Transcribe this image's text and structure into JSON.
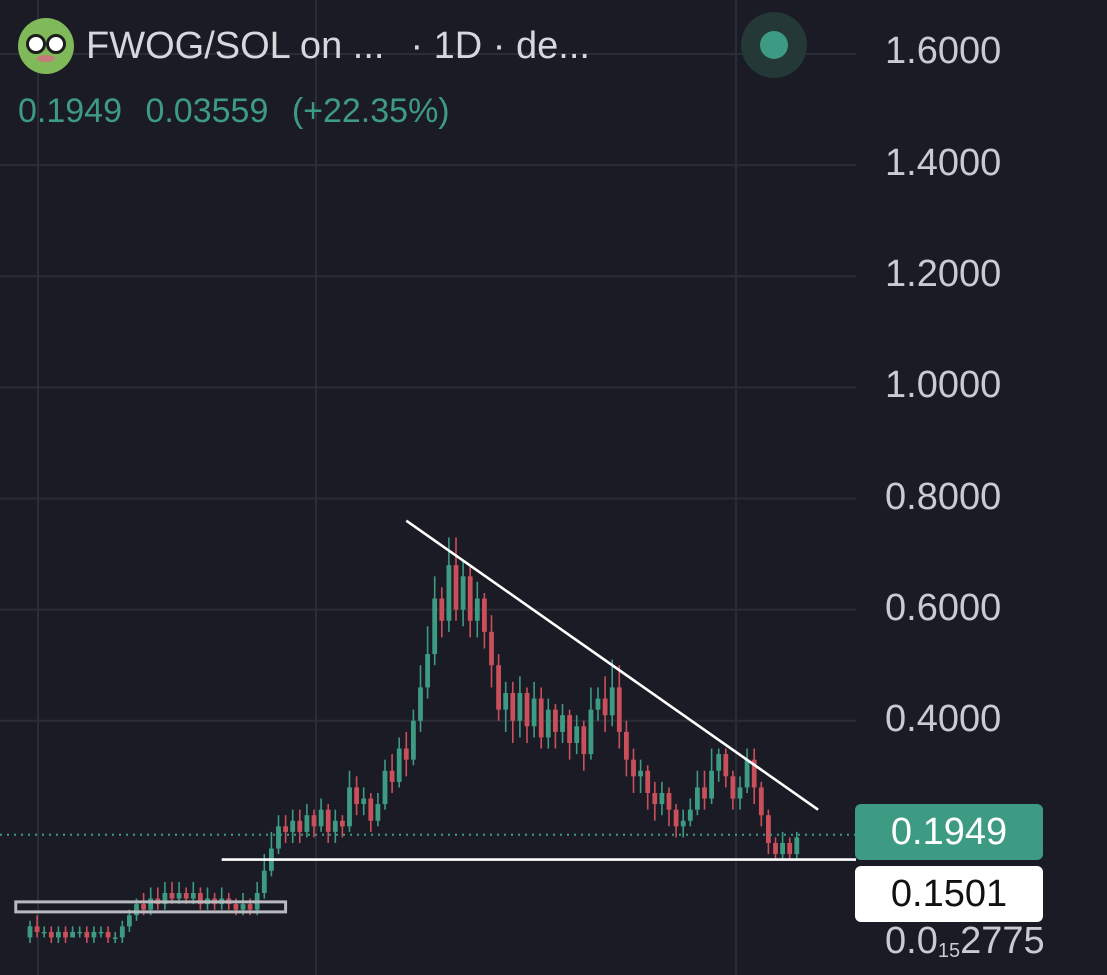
{
  "header": {
    "title": "FWOG/SOL on ...",
    "interval": "· 1D · de...",
    "last_price": "0.1949",
    "change": "0.03559",
    "change_pct": "(+22.35%)"
  },
  "colors": {
    "background": "#1a1b24",
    "up": "#3e9b83",
    "down": "#c9505b",
    "grid": "#2a2c36",
    "axis_text": "#c9cbd2",
    "drawing": "#ffffff"
  },
  "icons": [
    "frog-avatar-icon",
    "live-status-dot-icon"
  ],
  "price_tags": {
    "current": "0.1949",
    "level": "0.1501"
  },
  "bottom_label": {
    "prefix": "0.0",
    "subscript": "15",
    "suffix": "2775"
  },
  "chart_data": {
    "type": "candlestick",
    "interval": "1D",
    "y_ticks": [
      "1.6000",
      "1.4000",
      "1.2000",
      "1.0000",
      "0.8000",
      "0.6000",
      "0.4000"
    ],
    "ylim": [
      0.0,
      1.64
    ],
    "last_price": 0.1949,
    "support_level": 0.1501,
    "grid": true,
    "candles": [
      [
        0.01,
        0.03,
        0.0,
        0.04
      ],
      [
        0.03,
        0.02,
        0.01,
        0.05
      ],
      [
        0.02,
        0.02,
        0.01,
        0.03
      ],
      [
        0.02,
        0.01,
        0.0,
        0.03
      ],
      [
        0.01,
        0.02,
        0.0,
        0.03
      ],
      [
        0.02,
        0.01,
        0.0,
        0.03
      ],
      [
        0.01,
        0.02,
        0.01,
        0.03
      ],
      [
        0.02,
        0.02,
        0.01,
        0.03
      ],
      [
        0.02,
        0.01,
        0.0,
        0.03
      ],
      [
        0.01,
        0.02,
        0.0,
        0.03
      ],
      [
        0.02,
        0.02,
        0.01,
        0.03
      ],
      [
        0.02,
        0.01,
        0.0,
        0.03
      ],
      [
        0.01,
        0.01,
        0.0,
        0.02
      ],
      [
        0.01,
        0.03,
        0.0,
        0.04
      ],
      [
        0.03,
        0.05,
        0.02,
        0.06
      ],
      [
        0.05,
        0.07,
        0.04,
        0.08
      ],
      [
        0.07,
        0.06,
        0.05,
        0.09
      ],
      [
        0.06,
        0.08,
        0.05,
        0.1
      ],
      [
        0.08,
        0.07,
        0.06,
        0.1
      ],
      [
        0.07,
        0.09,
        0.06,
        0.11
      ],
      [
        0.09,
        0.08,
        0.07,
        0.11
      ],
      [
        0.08,
        0.09,
        0.07,
        0.11
      ],
      [
        0.09,
        0.08,
        0.07,
        0.1
      ],
      [
        0.08,
        0.09,
        0.07,
        0.11
      ],
      [
        0.09,
        0.07,
        0.06,
        0.1
      ],
      [
        0.07,
        0.08,
        0.06,
        0.1
      ],
      [
        0.08,
        0.07,
        0.06,
        0.09
      ],
      [
        0.07,
        0.08,
        0.06,
        0.1
      ],
      [
        0.08,
        0.07,
        0.06,
        0.09
      ],
      [
        0.07,
        0.06,
        0.05,
        0.08
      ],
      [
        0.06,
        0.07,
        0.05,
        0.09
      ],
      [
        0.07,
        0.06,
        0.05,
        0.08
      ],
      [
        0.06,
        0.09,
        0.05,
        0.11
      ],
      [
        0.09,
        0.13,
        0.08,
        0.16
      ],
      [
        0.13,
        0.17,
        0.12,
        0.2
      ],
      [
        0.17,
        0.21,
        0.16,
        0.23
      ],
      [
        0.21,
        0.2,
        0.18,
        0.23
      ],
      [
        0.2,
        0.22,
        0.18,
        0.24
      ],
      [
        0.22,
        0.2,
        0.18,
        0.24
      ],
      [
        0.2,
        0.23,
        0.19,
        0.25
      ],
      [
        0.23,
        0.21,
        0.19,
        0.24
      ],
      [
        0.21,
        0.24,
        0.2,
        0.26
      ],
      [
        0.24,
        0.2,
        0.18,
        0.25
      ],
      [
        0.2,
        0.22,
        0.18,
        0.24
      ],
      [
        0.22,
        0.21,
        0.19,
        0.23
      ],
      [
        0.21,
        0.28,
        0.2,
        0.31
      ],
      [
        0.28,
        0.25,
        0.23,
        0.3
      ],
      [
        0.25,
        0.26,
        0.23,
        0.28
      ],
      [
        0.26,
        0.22,
        0.2,
        0.27
      ],
      [
        0.22,
        0.25,
        0.21,
        0.27
      ],
      [
        0.25,
        0.31,
        0.24,
        0.33
      ],
      [
        0.31,
        0.29,
        0.27,
        0.34
      ],
      [
        0.29,
        0.35,
        0.28,
        0.37
      ],
      [
        0.35,
        0.33,
        0.3,
        0.38
      ],
      [
        0.33,
        0.4,
        0.32,
        0.42
      ],
      [
        0.4,
        0.46,
        0.38,
        0.5
      ],
      [
        0.46,
        0.52,
        0.44,
        0.57
      ],
      [
        0.52,
        0.62,
        0.5,
        0.66
      ],
      [
        0.62,
        0.58,
        0.55,
        0.64
      ],
      [
        0.58,
        0.68,
        0.56,
        0.73
      ],
      [
        0.68,
        0.6,
        0.58,
        0.73
      ],
      [
        0.6,
        0.66,
        0.57,
        0.69
      ],
      [
        0.66,
        0.58,
        0.55,
        0.68
      ],
      [
        0.58,
        0.62,
        0.55,
        0.65
      ],
      [
        0.62,
        0.56,
        0.53,
        0.63
      ],
      [
        0.56,
        0.5,
        0.46,
        0.59
      ],
      [
        0.5,
        0.42,
        0.4,
        0.52
      ],
      [
        0.42,
        0.45,
        0.38,
        0.47
      ],
      [
        0.45,
        0.4,
        0.36,
        0.47
      ],
      [
        0.4,
        0.45,
        0.37,
        0.48
      ],
      [
        0.45,
        0.39,
        0.36,
        0.46
      ],
      [
        0.39,
        0.44,
        0.37,
        0.47
      ],
      [
        0.44,
        0.37,
        0.35,
        0.46
      ],
      [
        0.37,
        0.42,
        0.35,
        0.44
      ],
      [
        0.42,
        0.38,
        0.35,
        0.43
      ],
      [
        0.38,
        0.41,
        0.36,
        0.43
      ],
      [
        0.41,
        0.36,
        0.33,
        0.42
      ],
      [
        0.36,
        0.39,
        0.34,
        0.41
      ],
      [
        0.39,
        0.34,
        0.31,
        0.4
      ],
      [
        0.34,
        0.42,
        0.33,
        0.46
      ],
      [
        0.42,
        0.44,
        0.4,
        0.46
      ],
      [
        0.44,
        0.41,
        0.38,
        0.48
      ],
      [
        0.41,
        0.46,
        0.39,
        0.51
      ],
      [
        0.46,
        0.38,
        0.35,
        0.5
      ],
      [
        0.38,
        0.33,
        0.3,
        0.4
      ],
      [
        0.33,
        0.3,
        0.27,
        0.35
      ],
      [
        0.3,
        0.31,
        0.27,
        0.33
      ],
      [
        0.31,
        0.27,
        0.24,
        0.32
      ],
      [
        0.27,
        0.25,
        0.22,
        0.29
      ],
      [
        0.25,
        0.27,
        0.23,
        0.29
      ],
      [
        0.27,
        0.24,
        0.21,
        0.28
      ],
      [
        0.24,
        0.21,
        0.19,
        0.25
      ],
      [
        0.21,
        0.22,
        0.19,
        0.24
      ],
      [
        0.22,
        0.24,
        0.21,
        0.26
      ],
      [
        0.24,
        0.28,
        0.23,
        0.31
      ],
      [
        0.28,
        0.26,
        0.24,
        0.31
      ],
      [
        0.26,
        0.31,
        0.25,
        0.35
      ],
      [
        0.31,
        0.34,
        0.29,
        0.35
      ],
      [
        0.34,
        0.3,
        0.28,
        0.35
      ],
      [
        0.3,
        0.26,
        0.24,
        0.31
      ],
      [
        0.26,
        0.28,
        0.24,
        0.3
      ],
      [
        0.28,
        0.33,
        0.27,
        0.35
      ],
      [
        0.33,
        0.28,
        0.25,
        0.35
      ],
      [
        0.28,
        0.23,
        0.21,
        0.29
      ],
      [
        0.23,
        0.18,
        0.16,
        0.24
      ],
      [
        0.18,
        0.16,
        0.15,
        0.19
      ],
      [
        0.16,
        0.18,
        0.15,
        0.2
      ],
      [
        0.18,
        0.16,
        0.15,
        0.19
      ],
      [
        0.16,
        0.19,
        0.15,
        0.2
      ]
    ],
    "trendlines": [
      {
        "name": "descending resistance",
        "from": [
          53,
          0.76
        ],
        "to": [
          111,
          0.24
        ]
      },
      {
        "name": "horizontal support",
        "from": [
          27,
          0.1501
        ],
        "to": [
          120,
          0.1501
        ]
      },
      {
        "name": "accumulation range",
        "from": [
          -2,
          0.065
        ],
        "to": [
          36,
          0.065
        ]
      }
    ]
  }
}
